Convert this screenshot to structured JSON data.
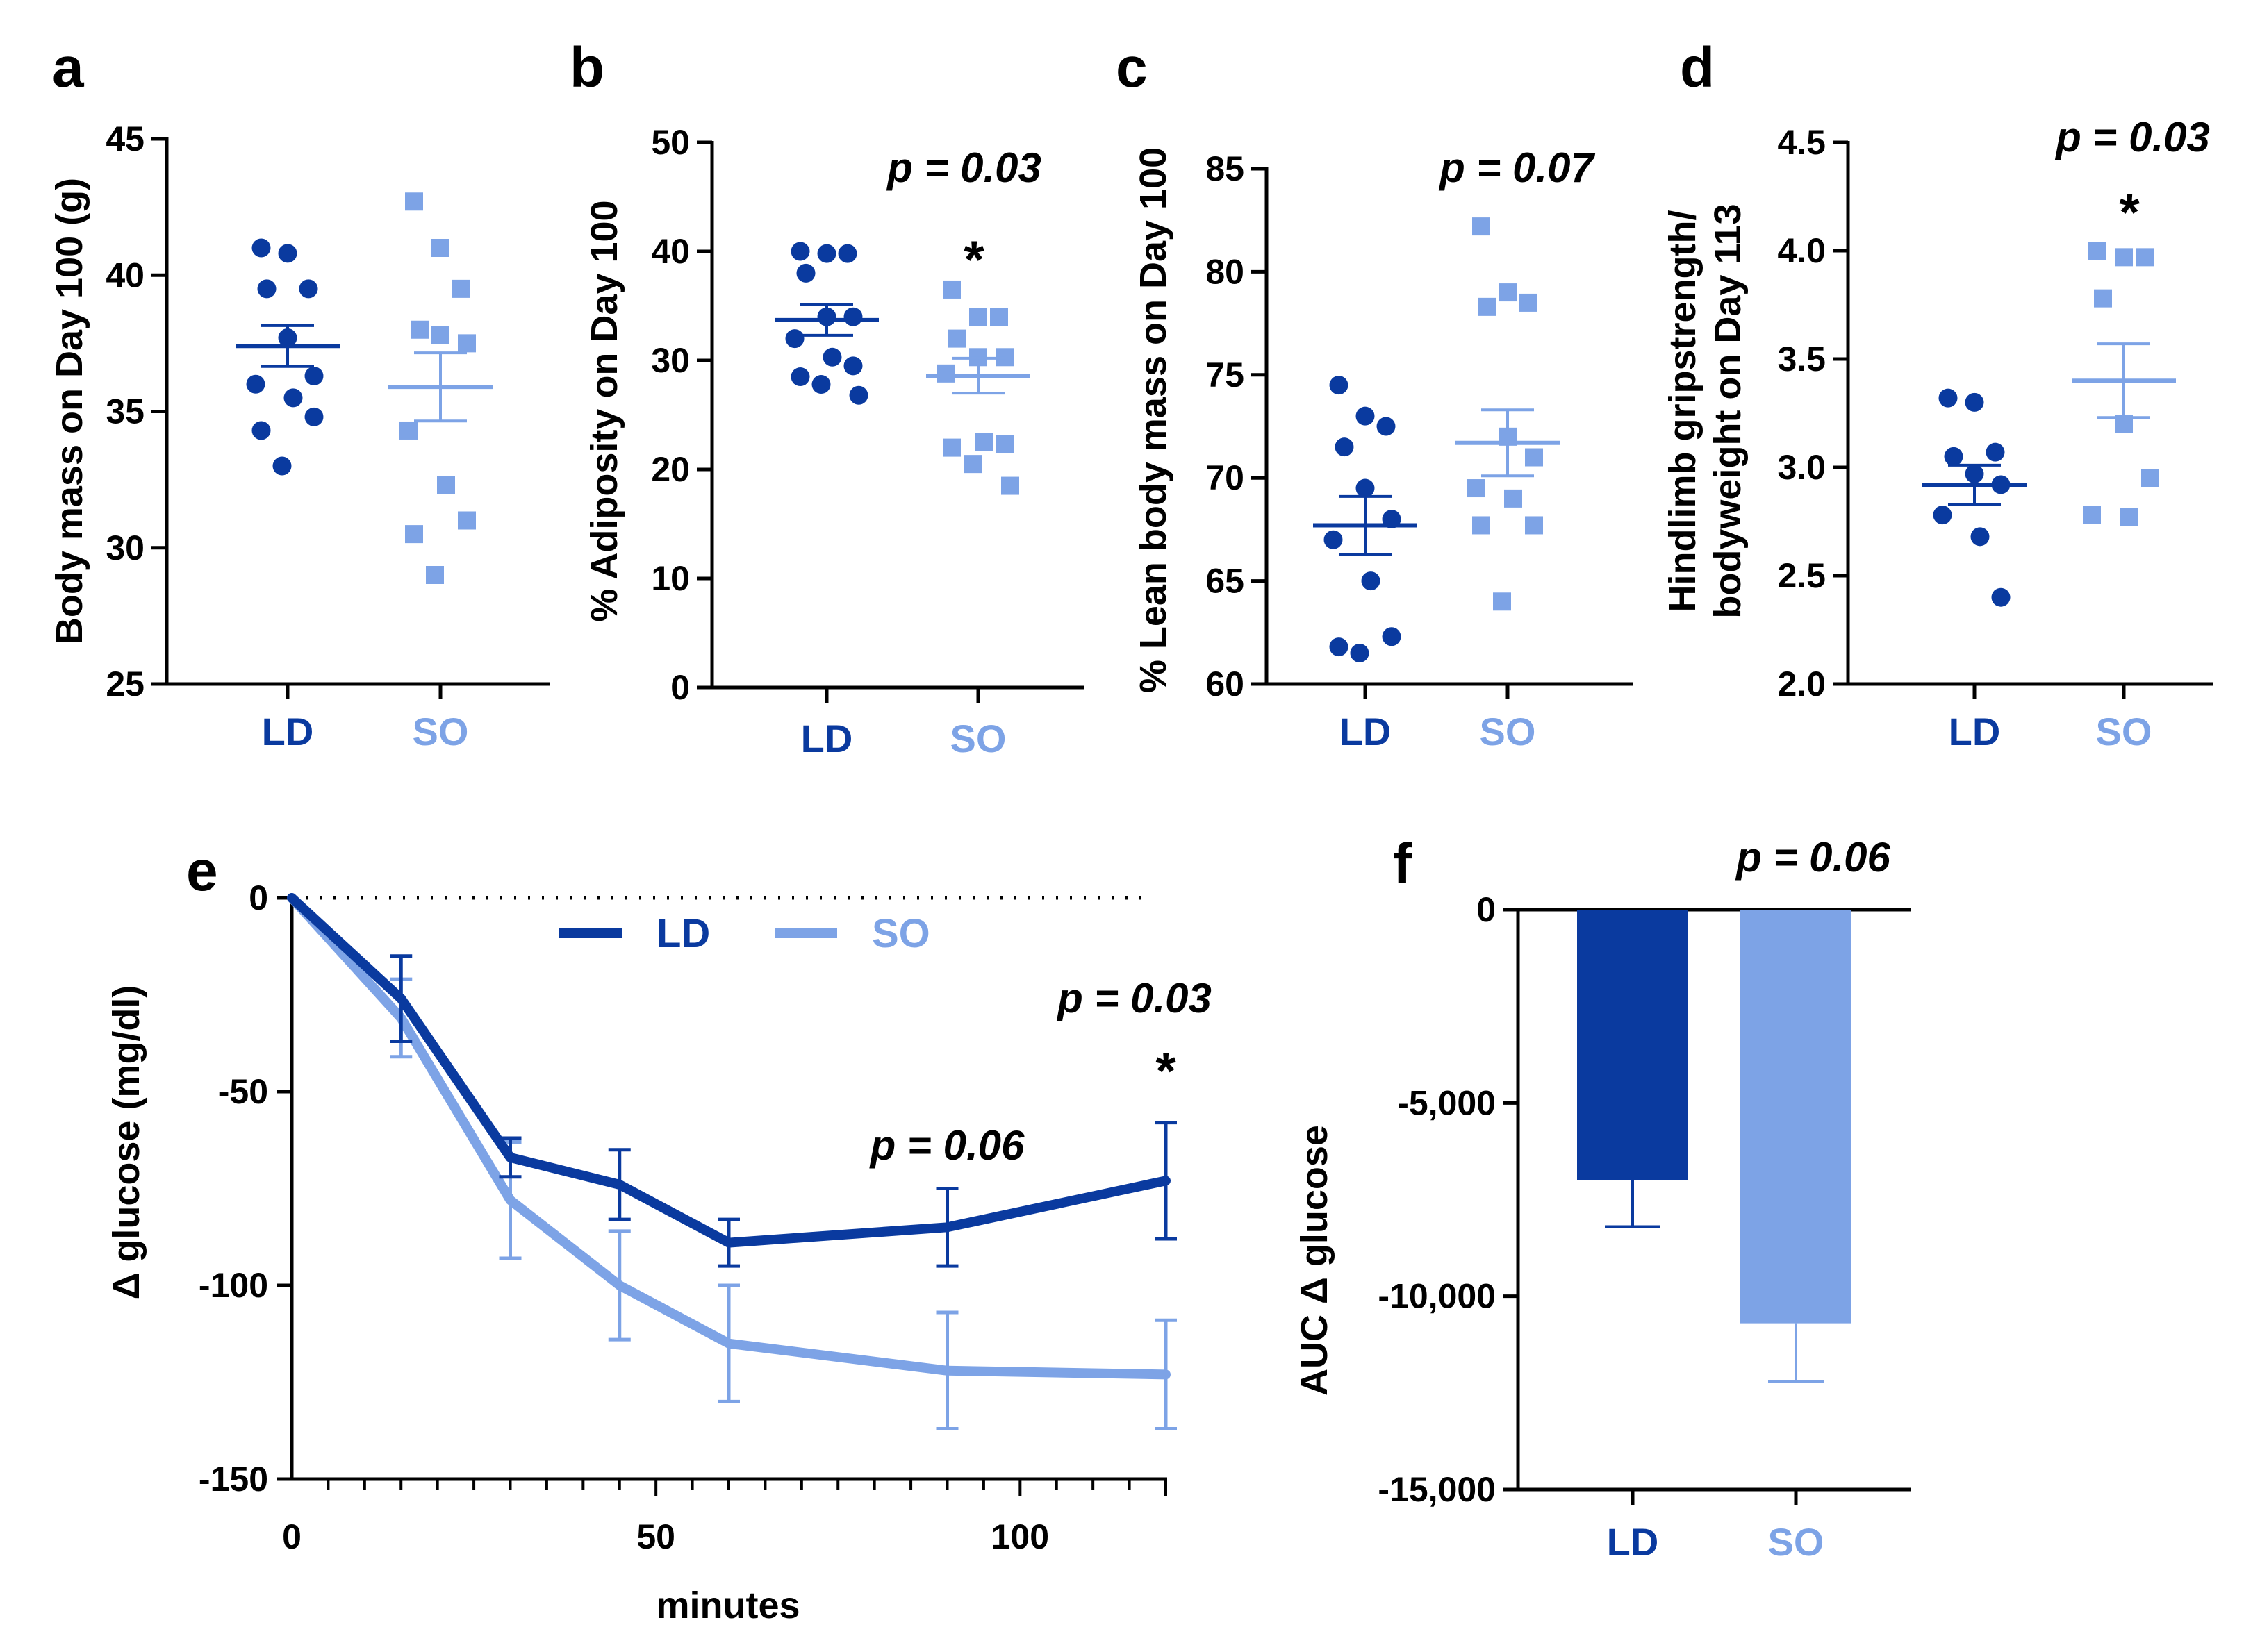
{
  "colors": {
    "LD": "#0a3a9f",
    "SO": "#7da3e6",
    "axis": "#000000"
  },
  "chart_data": [
    {
      "id": "a",
      "panel": "a",
      "type": "scatter",
      "ylabel": "Body mass on Day 100 (g)",
      "ylim": [
        25,
        45
      ],
      "yticks": [
        25,
        30,
        35,
        40,
        45
      ],
      "categories": [
        "LD",
        "SO"
      ],
      "groups": [
        {
          "name": "LD",
          "marker": "circle",
          "values": [
            41.0,
            40.8,
            39.5,
            39.5,
            37.7,
            36.3,
            36.0,
            35.5,
            34.8,
            34.3,
            33.0
          ],
          "mean": 37.4,
          "sem": 0.75
        },
        {
          "name": "SO",
          "marker": "square",
          "values": [
            42.7,
            41.0,
            39.5,
            38.0,
            37.8,
            37.5,
            34.3,
            32.3,
            31.0,
            30.5,
            29.0
          ],
          "mean": 35.9,
          "sem": 1.25
        }
      ],
      "pvalue": "",
      "star": ""
    },
    {
      "id": "b",
      "panel": "b",
      "type": "scatter",
      "ylabel": "% Adiposity on Day 100",
      "ylim": [
        0,
        50
      ],
      "yticks": [
        0,
        10,
        20,
        30,
        40,
        50
      ],
      "categories": [
        "LD",
        "SO"
      ],
      "groups": [
        {
          "name": "LD",
          "marker": "circle",
          "values": [
            40.0,
            39.8,
            39.8,
            38.0,
            34.0,
            34.0,
            32.0,
            30.3,
            29.5,
            28.5,
            27.8,
            26.8
          ],
          "mean": 33.7,
          "sem": 1.4
        },
        {
          "name": "SO",
          "marker": "square",
          "values": [
            36.5,
            34.0,
            34.0,
            32.0,
            30.3,
            30.3,
            28.8,
            22.5,
            22.3,
            22.0,
            20.5,
            18.5
          ],
          "mean": 28.6,
          "sem": 1.6
        }
      ],
      "pvalue": "p = 0.03",
      "star": "*"
    },
    {
      "id": "c",
      "panel": "c",
      "type": "scatter",
      "ylabel": "% Lean body mass on Day 100",
      "ylim": [
        60,
        85
      ],
      "yticks": [
        60,
        65,
        70,
        75,
        80,
        85
      ],
      "categories": [
        "LD",
        "SO"
      ],
      "groups": [
        {
          "name": "LD",
          "marker": "circle",
          "values": [
            74.5,
            73.0,
            72.5,
            71.5,
            69.5,
            68.0,
            67.0,
            65.0,
            62.3,
            61.8,
            61.5
          ],
          "mean": 67.7,
          "sem": 1.4
        },
        {
          "name": "SO",
          "marker": "square",
          "values": [
            82.2,
            79.0,
            78.5,
            78.3,
            72.0,
            71.0,
            69.5,
            69.0,
            67.7,
            67.7,
            64.0
          ],
          "mean": 71.7,
          "sem": 1.6
        }
      ],
      "pvalue": "p = 0.07",
      "star": ""
    },
    {
      "id": "d",
      "panel": "d",
      "type": "scatter",
      "ylabel": "Hindlimb gripstrength/ bodyweight on Day 113",
      "ylabel_lines": [
        "Hindlimb gripstrength/",
        "bodyweight on Day 113"
      ],
      "ylim": [
        2.0,
        4.5
      ],
      "yticks": [
        "2.0",
        "2.5",
        "3.0",
        "3.5",
        "4.0",
        "4.5"
      ],
      "categories": [
        "LD",
        "SO"
      ],
      "groups": [
        {
          "name": "LD",
          "marker": "circle",
          "values": [
            3.32,
            3.3,
            3.07,
            3.05,
            2.97,
            2.92,
            2.78,
            2.68,
            2.4
          ],
          "mean": 2.92,
          "sem": 0.09
        },
        {
          "name": "SO",
          "marker": "square",
          "values": [
            4.0,
            3.97,
            3.97,
            3.78,
            3.2,
            2.95,
            2.78,
            2.77
          ],
          "mean": 3.4,
          "sem": 0.17
        }
      ],
      "pvalue": "p = 0.03",
      "star": "*"
    },
    {
      "id": "e",
      "panel": "e",
      "type": "line",
      "xlabel": "minutes",
      "ylabel": "Δ glucose (mg/dl)",
      "xlim": [
        0,
        120
      ],
      "ylim": [
        -150,
        0
      ],
      "xticks": [
        0,
        50,
        100
      ],
      "yticks": [
        0,
        -50,
        -100,
        -150
      ],
      "x": [
        0,
        15,
        30,
        45,
        60,
        90,
        120
      ],
      "series": [
        {
          "name": "LD",
          "values": [
            0,
            -26,
            -67,
            -74,
            -89,
            -85,
            -73
          ],
          "err": [
            0,
            11,
            5,
            9,
            6,
            10,
            15
          ]
        },
        {
          "name": "SO",
          "values": [
            0,
            -31,
            -78,
            -100,
            -115,
            -122,
            -123
          ],
          "err": [
            0,
            10,
            15,
            14,
            15,
            15,
            14
          ]
        }
      ],
      "legend": [
        "LD",
        "SO"
      ],
      "annotations": [
        {
          "text": "p = 0.03",
          "x": 120,
          "y": -26
        },
        {
          "text": "*",
          "x": 120,
          "y": -44
        },
        {
          "text": "p = 0.06",
          "x": 90,
          "y": -64
        }
      ]
    },
    {
      "id": "f",
      "panel": "f",
      "type": "bar",
      "ylabel": "AUC Δ glucose",
      "ylim": [
        -15000,
        0
      ],
      "yticks": [
        0,
        -5000,
        -10000,
        -15000
      ],
      "ytick_labels": [
        "0",
        "-5,000",
        "-10,000",
        "-15,000"
      ],
      "categories": [
        "LD",
        "SO"
      ],
      "values": [
        -7000,
        -10700
      ],
      "err": [
        1200,
        1500
      ],
      "pvalue": "p = 0.06"
    }
  ]
}
